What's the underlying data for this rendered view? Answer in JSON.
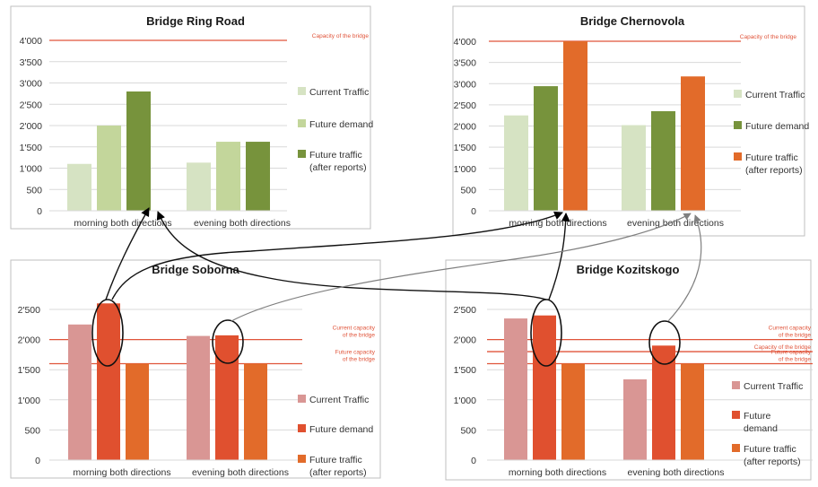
{
  "colors": {
    "green_light": "#d6e3c3",
    "green_mid": "#c3d69b",
    "green_dark": "#77933c",
    "orange": "#e26b2a",
    "pink": "#d99694",
    "red": "#e0502f",
    "capacity_line": "#e0543a",
    "capacity_text": "#e0543a",
    "arrow": "#000000",
    "arrow_gray": "#7f7f7f",
    "grid": "#d9d9d9"
  },
  "chart_data": [
    {
      "type": "bar",
      "title": "Bridge Ring Road",
      "categories": [
        "morning both directions",
        "evening both directions"
      ],
      "series": [
        {
          "name": "Current Traffic",
          "values": [
            1100,
            1130
          ],
          "color": "green_light"
        },
        {
          "name": "Future demand",
          "values": [
            2000,
            1620
          ],
          "color": "green_mid"
        },
        {
          "name": "Future traffic\n(after reports)",
          "values": [
            2800,
            1620
          ],
          "color": "green_dark"
        }
      ],
      "ylim": [
        0,
        4000
      ],
      "yticks": [
        0,
        500,
        1000,
        1500,
        2000,
        2500,
        3000,
        3500,
        4000
      ],
      "ytick_labels": [
        "0",
        "500",
        "1'000",
        "1'500",
        "2'000",
        "2'500",
        "3'000",
        "3'500",
        "4'000"
      ],
      "grid": true,
      "legend": "right",
      "lines": [
        {
          "value": 4000,
          "label": [
            "Capacity of the bridge"
          ]
        }
      ]
    },
    {
      "type": "bar",
      "title": "Bridge Chernovola",
      "categories": [
        "morning both directions",
        "evening both directions"
      ],
      "series": [
        {
          "name": "Current Traffic",
          "values": [
            2250,
            2020
          ],
          "color": "green_light"
        },
        {
          "name": "Future demand",
          "values": [
            2940,
            2350
          ],
          "color": "green_dark"
        },
        {
          "name": "Future traffic\n(after reports)",
          "values": [
            4000,
            3170
          ],
          "color": "orange"
        }
      ],
      "ylim": [
        0,
        4000
      ],
      "yticks": [
        0,
        500,
        1000,
        1500,
        2000,
        2500,
        3000,
        3500,
        4000
      ],
      "ytick_labels": [
        "0",
        "500",
        "1'000",
        "1'500",
        "2'000",
        "2'500",
        "3'000",
        "3'500",
        "4'000"
      ],
      "grid": true,
      "legend": "right",
      "lines": [
        {
          "value": 4000,
          "label": [
            "Capacity of the bridge"
          ]
        }
      ]
    },
    {
      "type": "bar",
      "title": "Bridge Soborna",
      "categories": [
        "morning both directions",
        "evening both directions"
      ],
      "series": [
        {
          "name": "Current Traffic",
          "values": [
            2250,
            2060
          ],
          "color": "pink"
        },
        {
          "name": "Future demand",
          "values": [
            2600,
            2070
          ],
          "color": "red"
        },
        {
          "name": "Future traffic\n(after reports)",
          "values": [
            1600,
            1600
          ],
          "color": "orange"
        }
      ],
      "ylim": [
        0,
        2500
      ],
      "yticks": [
        0,
        500,
        1000,
        1500,
        2000,
        2500
      ],
      "ytick_labels": [
        "0",
        "500",
        "1'000",
        "1'500",
        "2'000",
        "2'500"
      ],
      "grid": true,
      "legend": "right",
      "lines": [
        {
          "value": 2000,
          "label": [
            "Current capacity",
            "of the bridge"
          ]
        },
        {
          "value": 1600,
          "label": [
            "Future capacity",
            "of the bridge"
          ]
        }
      ]
    },
    {
      "type": "bar",
      "title": "Bridge Kozitskogo",
      "categories": [
        "morning both directions",
        "evening both directions"
      ],
      "series": [
        {
          "name": "Current Traffic",
          "values": [
            2350,
            1340
          ],
          "color": "pink"
        },
        {
          "name": "Future\ndemand",
          "values": [
            2400,
            1900
          ],
          "color": "red"
        },
        {
          "name": "Future traffic\n(after reports)",
          "values": [
            1600,
            1600
          ],
          "color": "orange"
        }
      ],
      "ylim": [
        0,
        2500
      ],
      "yticks": [
        0,
        500,
        1000,
        1500,
        2000,
        2500
      ],
      "ytick_labels": [
        "0",
        "500",
        "1'000",
        "1'500",
        "2'000",
        "2'500"
      ],
      "grid": true,
      "legend": "right",
      "lines": [
        {
          "value": 2000,
          "label": [
            "Current capacity",
            "of the bridge"
          ]
        },
        {
          "value": 1800,
          "label": [
            "Capacity of the bridge"
          ]
        },
        {
          "value": 1600,
          "label": [
            "Future capacity",
            "of the bridge"
          ]
        }
      ]
    }
  ]
}
